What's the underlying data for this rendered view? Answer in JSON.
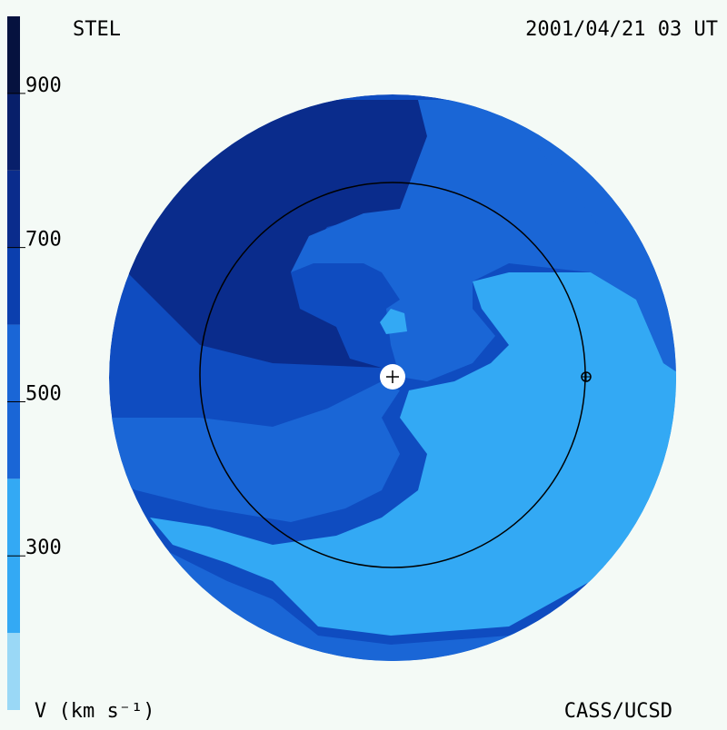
{
  "chart_data": {
    "type": "velocity-map",
    "title": "STEL",
    "timestamp": "2001/04/21 03 UT",
    "credit": "CASS/UCSD",
    "colorbar_label": "V (km s⁻¹)",
    "vlim": [
      100,
      1000
    ],
    "yticks": [
      300,
      500,
      700,
      900
    ],
    "colorbar": {
      "levels": [
        100,
        200,
        400,
        600,
        700,
        800,
        900,
        1000
      ],
      "colors": [
        "#9ad8f6",
        "#33a9f4",
        "#1a66d6",
        "#0b3fae",
        "#0a2c8c",
        "#081f6a",
        "#06123f"
      ]
    }
  }
}
